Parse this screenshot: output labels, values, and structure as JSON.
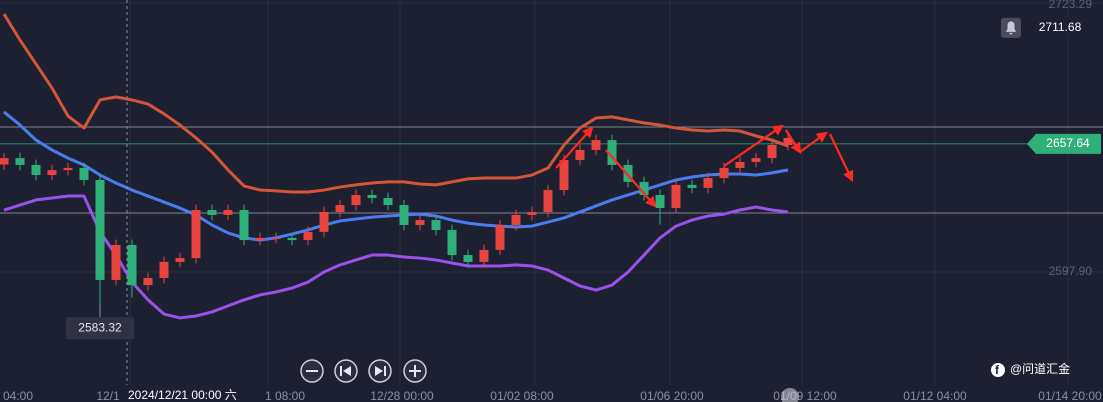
{
  "chart_data": {
    "type": "candlestick",
    "ylim": [
      2545.23,
      2724.69
    ],
    "yticks": [
      2723.29,
      {
        "value": 2597.9,
        "label": "2597.90"
      }
    ],
    "grid": true,
    "up_color": "#e8453f",
    "down_color": "#2fb07a",
    "open": [
      2648.0,
      2651.0,
      2647.8,
      2643.1,
      2645.4,
      2646.4,
      2640.8,
      2594.2,
      2610.5,
      2591.8,
      2595.1,
      2602.6,
      2604.4,
      2626.8,
      2624.5,
      2626.8,
      2612.8,
      2613.8,
      2613.8,
      2612.8,
      2616.6,
      2625.9,
      2629.1,
      2633.8,
      2632.4,
      2629.1,
      2619.8,
      2622.1,
      2617.5,
      2605.8,
      2602.6,
      2608.2,
      2619.8,
      2624.5,
      2625.9,
      2636.1,
      2650.1,
      2654.8,
      2659.4,
      2647.8,
      2639.9,
      2633.8,
      2627.7,
      2638.5,
      2637.1,
      2641.7,
      2646.4,
      2649.2,
      2651.0,
      2657.1
    ],
    "high": [
      2653.5,
      2653.5,
      2650.3,
      2647.9,
      2648.9,
      2648.9,
      2643.3,
      2613.0,
      2613.0,
      2597.6,
      2605.1,
      2606.9,
      2629.3,
      2629.3,
      2629.3,
      2629.3,
      2616.3,
      2616.3,
      2616.3,
      2619.1,
      2628.4,
      2631.6,
      2636.3,
      2636.3,
      2634.9,
      2631.6,
      2624.6,
      2624.6,
      2620.0,
      2608.3,
      2610.7,
      2622.3,
      2627.0,
      2628.4,
      2638.6,
      2652.6,
      2657.3,
      2661.9,
      2661.9,
      2650.3,
      2642.4,
      2636.3,
      2641.0,
      2641.0,
      2644.2,
      2648.9,
      2651.7,
      2653.5,
      2659.6,
      2662.9
    ],
    "low": [
      2645.5,
      2645.3,
      2640.6,
      2640.6,
      2642.9,
      2638.3,
      2583.32,
      2591.7,
      2586.0,
      2589.3,
      2592.6,
      2600.1,
      2601.9,
      2622.0,
      2622.0,
      2610.3,
      2610.3,
      2611.3,
      2610.3,
      2610.3,
      2614.1,
      2623.4,
      2626.6,
      2629.9,
      2626.6,
      2617.3,
      2617.3,
      2615.0,
      2603.3,
      2600.1,
      2600.1,
      2605.7,
      2617.3,
      2622.0,
      2623.4,
      2633.6,
      2647.6,
      2652.3,
      2645.3,
      2637.4,
      2631.3,
      2620.0,
      2625.2,
      2634.6,
      2634.6,
      2639.2,
      2643.9,
      2646.7,
      2648.5,
      2654.6
    ],
    "close": [
      2651.0,
      2647.8,
      2643.1,
      2645.4,
      2646.4,
      2640.8,
      2594.2,
      2610.5,
      2591.8,
      2595.1,
      2602.6,
      2604.4,
      2626.8,
      2624.5,
      2626.8,
      2612.8,
      2613.8,
      2613.8,
      2612.8,
      2616.6,
      2625.9,
      2629.1,
      2633.8,
      2632.4,
      2629.1,
      2619.8,
      2622.1,
      2617.5,
      2605.8,
      2602.6,
      2608.2,
      2619.8,
      2624.5,
      2625.9,
      2636.1,
      2650.1,
      2654.8,
      2659.4,
      2647.8,
      2639.9,
      2633.8,
      2627.7,
      2638.5,
      2637.1,
      2641.7,
      2646.4,
      2649.2,
      2651.0,
      2657.1,
      2660.4
    ],
    "series": [
      {
        "color": "#d4563a",
        "values": [
          2718.2,
          2706.0,
          2694.9,
          2683.7,
          2670.6,
          2665.0,
          2678.1,
          2679.5,
          2678.1,
          2676.2,
          2671.6,
          2666.4,
          2660.4,
          2653.8,
          2645.5,
          2638.0,
          2636.1,
          2635.7,
          2635.2,
          2635.2,
          2636.1,
          2637.5,
          2638.5,
          2639.4,
          2639.9,
          2639.9,
          2638.9,
          2638.5,
          2639.9,
          2641.3,
          2641.7,
          2641.7,
          2641.7,
          2643.1,
          2646.4,
          2657.1,
          2665.0,
          2669.7,
          2670.2,
          2668.8,
          2667.4,
          2666.4,
          2665.0,
          2664.1,
          2663.6,
          2664.1,
          2663.6,
          2661.3,
          2659.4,
          2656.6
        ]
      },
      {
        "color": "#4a7cf0",
        "values": [
          2672.5,
          2666.4,
          2659.4,
          2654.8,
          2651.0,
          2647.8,
          2643.1,
          2639.4,
          2636.1,
          2633.3,
          2630.5,
          2627.7,
          2624.5,
          2619.8,
          2616.1,
          2613.8,
          2612.8,
          2613.8,
          2615.6,
          2617.5,
          2619.8,
          2621.7,
          2622.6,
          2623.5,
          2624.0,
          2624.5,
          2624.9,
          2624.0,
          2622.1,
          2620.7,
          2619.8,
          2619.3,
          2618.9,
          2619.3,
          2621.2,
          2623.1,
          2625.9,
          2628.7,
          2631.5,
          2633.8,
          2636.1,
          2638.5,
          2640.8,
          2642.2,
          2643.1,
          2643.6,
          2643.6,
          2643.1,
          2644.1,
          2645.5
        ]
      },
      {
        "color": "#9a52ea",
        "values": [
          2626.8,
          2629.1,
          2631.5,
          2632.4,
          2633.3,
          2633.3,
          2616.6,
          2605.8,
          2593.2,
          2584.9,
          2578.3,
          2576.5,
          2577.4,
          2579.3,
          2582.1,
          2584.9,
          2587.2,
          2588.6,
          2590.4,
          2593.2,
          2597.9,
          2601.2,
          2603.5,
          2605.8,
          2605.8,
          2604.9,
          2604.4,
          2603.5,
          2602.1,
          2600.7,
          2600.7,
          2600.7,
          2601.2,
          2600.7,
          2598.8,
          2595.1,
          2591.4,
          2589.5,
          2591.8,
          2597.9,
          2605.8,
          2613.8,
          2619.3,
          2622.1,
          2624.0,
          2624.9,
          2626.8,
          2628.2,
          2626.8,
          2625.9
        ]
      }
    ],
    "levels": [
      2665.5,
      2625.4
    ],
    "alert_price": 2711.68,
    "last_price": 2657.64,
    "low_label": 2583.32,
    "xlabels": [
      "04:00",
      "12/1",
      "1 08:00",
      "12/28 00:00",
      "01/02 08:00",
      "01/06 20:00",
      "01/09 12:00",
      "01/12 04:00",
      "01/14 20:00"
    ],
    "crosshair_label": "2024/12/21 00:00 六",
    "watermark": "@问道汇金"
  }
}
